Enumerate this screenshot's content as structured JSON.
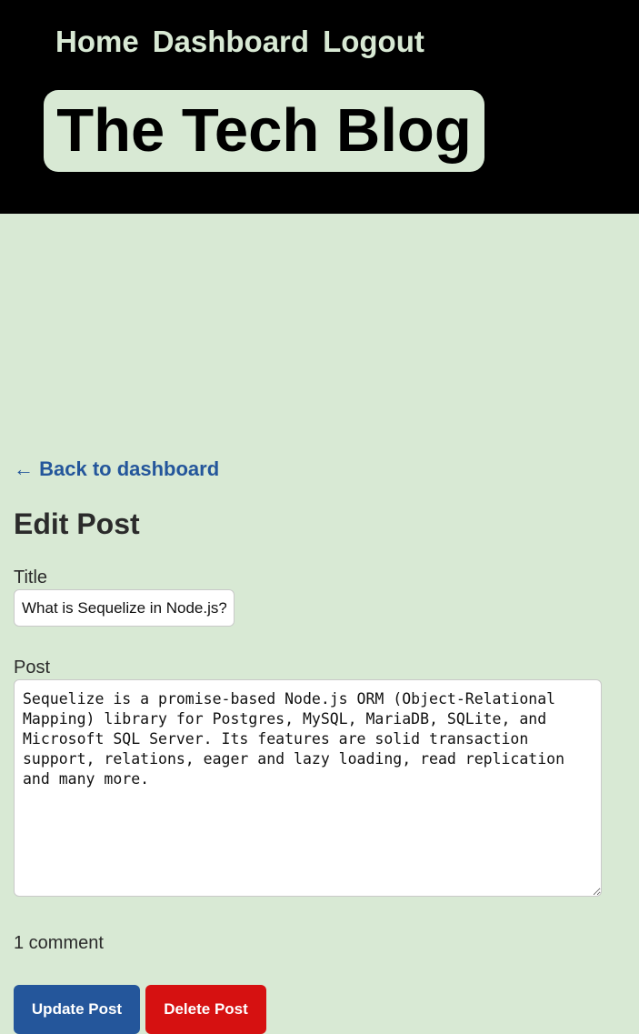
{
  "header": {
    "nav": {
      "home": "Home",
      "dashboard": "Dashboard",
      "logout": "Logout"
    },
    "brand_title": "The Tech Blog"
  },
  "main": {
    "back_link": "← Back to dashboard",
    "page_title": "Edit Post",
    "title_label": "Title",
    "title_value": "What is Sequelize in Node.js?",
    "post_label": "Post",
    "post_value": "Sequelize is a promise-based Node.js ORM (Object-Relational Mapping) library for Postgres, MySQL, MariaDB, SQLite, and Microsoft SQL Server. Its features are solid transaction support, relations, eager and lazy loading, read replication and many more.",
    "comment_count": "1 comment",
    "update_button": "Update Post",
    "delete_button": "Delete Post"
  },
  "colors": {
    "page_background": "#d8e9d4",
    "header_background": "#000000",
    "link": "#24569b",
    "update_button": "#24569b",
    "delete_button": "#d61111"
  }
}
